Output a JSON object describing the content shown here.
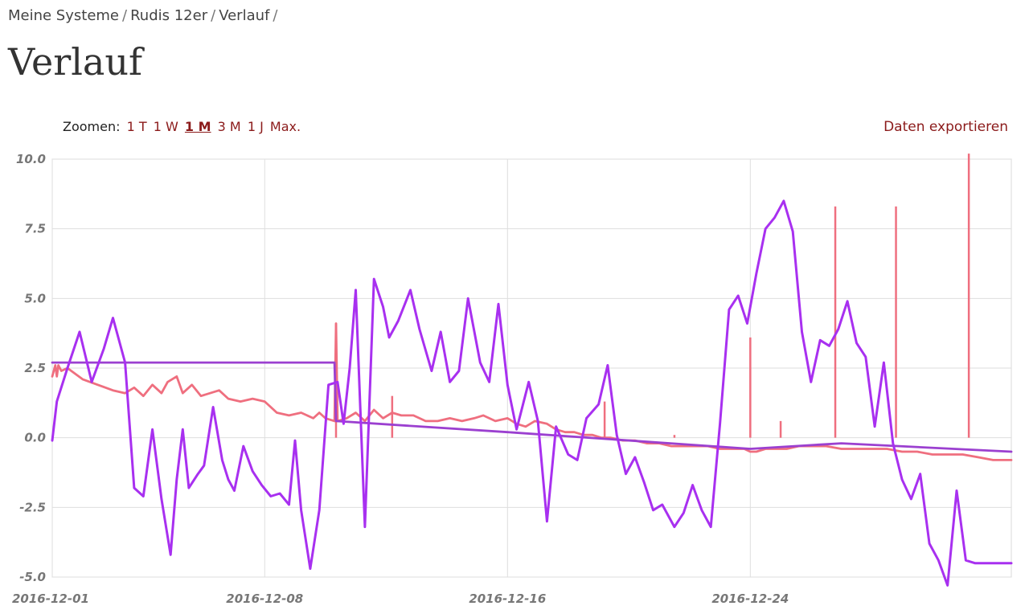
{
  "breadcrumb": {
    "items": [
      "Meine Systeme",
      "Rudis 12er",
      "Verlauf"
    ],
    "separator": "/"
  },
  "page": {
    "title": "Verlauf"
  },
  "zoom": {
    "label": "Zoomen:",
    "options": [
      "1 T",
      "1 W",
      "1 M",
      "3 M",
      "1 J",
      "Max."
    ],
    "active": "1 M"
  },
  "export": {
    "label": "Daten exportieren"
  },
  "colors": {
    "link": "#8b1a1a",
    "series_purple": "#a830f0",
    "series_red": "#ef6f7f",
    "series_avg": "#9b40d0"
  },
  "chart_data": {
    "type": "line",
    "ylim": [
      -5.0,
      10.0
    ],
    "y_ticks": [
      "10.0",
      "7.5",
      "5.0",
      "2.5",
      "0.0",
      "-2.5",
      "-5.0"
    ],
    "x_ticks": [
      "2016-12-01",
      "2016-12-08",
      "2016-12-16",
      "2016-12-24"
    ],
    "x_tick_days": [
      0,
      7,
      15,
      23
    ],
    "xlim_days": [
      0,
      31.6
    ],
    "grid": true,
    "series": [
      {
        "color": "#a830f0",
        "x": [
          0,
          0.15,
          0.5,
          0.9,
          1.3,
          1.7,
          2.0,
          2.4,
          2.7,
          3.0,
          3.3,
          3.6,
          3.9,
          4.1,
          4.3,
          4.5,
          4.8,
          5.0,
          5.3,
          5.6,
          5.8,
          6.0,
          6.3,
          6.6,
          6.9,
          7.2,
          7.5,
          7.8,
          8.0,
          8.2,
          8.5,
          8.8,
          9.1,
          9.4,
          9.6,
          9.8,
          10.0,
          10.3,
          10.6,
          10.9,
          11.1,
          11.4,
          11.8,
          12.1,
          12.5,
          12.8,
          13.1,
          13.4,
          13.7,
          14.1,
          14.4,
          14.7,
          15.0,
          15.3,
          15.7,
          16.0,
          16.3,
          16.6,
          17.0,
          17.3,
          17.6,
          18.0,
          18.3,
          18.6,
          18.9,
          19.2,
          19.5,
          19.8,
          20.1,
          20.5,
          20.8,
          21.1,
          21.4,
          21.7,
          22.0,
          22.3,
          22.6,
          22.9,
          23.2,
          23.5,
          23.8,
          24.1,
          24.4,
          24.7,
          25.0,
          25.3,
          25.6,
          25.9,
          26.2,
          26.5,
          26.8,
          27.1,
          27.4,
          27.7,
          28.0,
          28.3,
          28.6,
          28.9,
          29.2,
          29.5,
          29.8,
          30.1,
          30.4,
          30.7,
          31.0,
          31.3,
          31.6
        ],
        "y": [
          -0.1,
          1.3,
          2.5,
          3.8,
          2.0,
          3.2,
          4.3,
          2.7,
          -1.8,
          -2.1,
          0.3,
          -2.2,
          -4.2,
          -1.5,
          0.3,
          -1.8,
          -1.3,
          -1.0,
          1.1,
          -0.8,
          -1.5,
          -1.9,
          -0.3,
          -1.2,
          -1.7,
          -2.1,
          -2.0,
          -2.4,
          -0.1,
          -2.6,
          -4.7,
          -2.6,
          1.9,
          2.0,
          0.5,
          2.5,
          5.3,
          -3.2,
          5.7,
          4.7,
          3.6,
          4.2,
          5.3,
          3.9,
          2.4,
          3.8,
          2.0,
          2.4,
          5.0,
          2.7,
          2.0,
          4.8,
          1.9,
          0.3,
          2.0,
          0.6,
          -3.0,
          0.4,
          -0.6,
          -0.8,
          0.7,
          1.2,
          2.6,
          0.1,
          -1.3,
          -0.7,
          -1.6,
          -2.6,
          -2.4,
          -3.2,
          -2.7,
          -1.7,
          -2.6,
          -3.2,
          0.5,
          4.6,
          5.1,
          4.1,
          5.9,
          7.5,
          7.9,
          8.5,
          7.4,
          3.8,
          2.0,
          3.5,
          3.3,
          3.9,
          4.9,
          3.4,
          2.9,
          0.4,
          2.7,
          -0.2,
          -1.5,
          -2.2,
          -1.3,
          -3.8,
          -4.4,
          -5.3,
          -1.9,
          -4.4,
          -4.5,
          -4.5,
          -4.5,
          -4.5,
          -4.5
        ]
      },
      {
        "color": "#ef6f7f",
        "x": [
          0,
          0.1,
          0.15,
          0.2,
          0.3,
          0.5,
          1.0,
          1.5,
          2.0,
          2.4,
          2.7,
          3.0,
          3.3,
          3.6,
          3.8,
          4.1,
          4.3,
          4.6,
          4.9,
          5.2,
          5.5,
          5.8,
          6.2,
          6.6,
          7.0,
          7.4,
          7.8,
          8.2,
          8.6,
          8.8,
          9.0,
          9.3,
          9.35,
          9.4,
          9.7,
          10.0,
          10.3,
          10.6,
          10.9,
          11.2,
          11.5,
          11.9,
          12.3,
          12.7,
          13.1,
          13.5,
          13.9,
          14.2,
          14.6,
          15.0,
          15.3,
          15.6,
          15.9,
          16.3,
          16.6,
          16.9,
          17.2,
          17.5,
          17.8,
          18.1,
          18.4,
          18.8,
          19.2,
          19.6,
          20.0,
          20.4,
          20.8,
          21.2,
          21.6,
          22.0,
          22.4,
          22.8,
          23.0,
          23.2,
          23.5,
          23.8,
          24.2,
          24.6,
          25.0,
          25.5,
          26.0,
          26.5,
          27.0,
          27.5,
          28.0,
          28.5,
          29.0,
          29.5,
          30.0,
          30.5,
          31.0,
          31.6
        ],
        "y": [
          2.2,
          2.6,
          2.2,
          2.6,
          2.4,
          2.5,
          2.1,
          1.9,
          1.7,
          1.6,
          1.8,
          1.5,
          1.9,
          1.6,
          2.0,
          2.2,
          1.6,
          1.9,
          1.5,
          1.6,
          1.7,
          1.4,
          1.3,
          1.4,
          1.3,
          0.9,
          0.8,
          0.9,
          0.7,
          0.9,
          0.7,
          0.6,
          4.1,
          0.6,
          0.7,
          0.9,
          0.6,
          1.0,
          0.7,
          0.9,
          0.8,
          0.8,
          0.6,
          0.6,
          0.7,
          0.6,
          0.7,
          0.8,
          0.6,
          0.7,
          0.5,
          0.4,
          0.6,
          0.5,
          0.3,
          0.2,
          0.2,
          0.1,
          0.1,
          0.0,
          0.0,
          -0.1,
          -0.1,
          -0.2,
          -0.2,
          -0.3,
          -0.3,
          -0.3,
          -0.3,
          -0.4,
          -0.4,
          -0.4,
          -0.5,
          -0.5,
          -0.4,
          -0.4,
          -0.4,
          -0.3,
          -0.3,
          -0.3,
          -0.4,
          -0.4,
          -0.4,
          -0.4,
          -0.5,
          -0.5,
          -0.6,
          -0.6,
          -0.6,
          -0.7,
          -0.8,
          -0.8
        ]
      },
      {
        "color": "#9b40d0",
        "x": [
          0,
          8.5,
          8.5,
          9.3,
          9.35,
          15.0,
          23.0,
          26.0,
          31.6
        ],
        "y": [
          2.7,
          2.7,
          2.7,
          2.7,
          0.6,
          0.2,
          -0.4,
          -0.2,
          -0.5
        ]
      }
    ],
    "spikes": [
      {
        "series": 1,
        "x": 9.35,
        "y": 4.1
      },
      {
        "series": 1,
        "x": 23.0,
        "y": 3.6
      },
      {
        "series": 1,
        "x": 24.0,
        "y": 0.6
      },
      {
        "series": 1,
        "x": 25.8,
        "y": 8.3
      },
      {
        "series": 1,
        "x": 27.8,
        "y": 8.3
      },
      {
        "series": 1,
        "x": 30.2,
        "y": 10.2
      },
      {
        "series": 1,
        "x": 18.2,
        "y": 1.3
      },
      {
        "series": 1,
        "x": 20.5,
        "y": 0.1
      },
      {
        "series": 1,
        "x": 11.2,
        "y": 1.5
      }
    ]
  }
}
